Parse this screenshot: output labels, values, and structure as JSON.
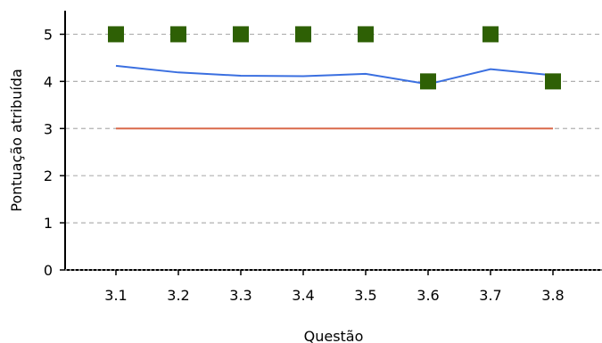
{
  "chart_data": {
    "type": "line",
    "title": "",
    "xlabel": "Questão",
    "ylabel": "Pontuação atribuída",
    "categories": [
      "3.1",
      "3.2",
      "3.3",
      "3.4",
      "3.5",
      "3.6",
      "3.7",
      "3.8"
    ],
    "ylim": [
      0,
      5.5
    ],
    "yticks": [
      0,
      1,
      2,
      3,
      4,
      5
    ],
    "grid": "horizontal-dashed",
    "legend": "none",
    "series": [
      {
        "type": "scatter",
        "marker": "square",
        "color": "#2e6005",
        "values": [
          5,
          5,
          5,
          5,
          5,
          4,
          5,
          4
        ]
      },
      {
        "type": "line",
        "color": "#3a6fe0",
        "values": [
          4.33,
          4.19,
          4.12,
          4.11,
          4.16,
          3.94,
          4.26,
          4.13
        ]
      },
      {
        "type": "line",
        "color": "#d9694a",
        "values": [
          3,
          3,
          3,
          3,
          3,
          3,
          3,
          3
        ]
      }
    ]
  }
}
